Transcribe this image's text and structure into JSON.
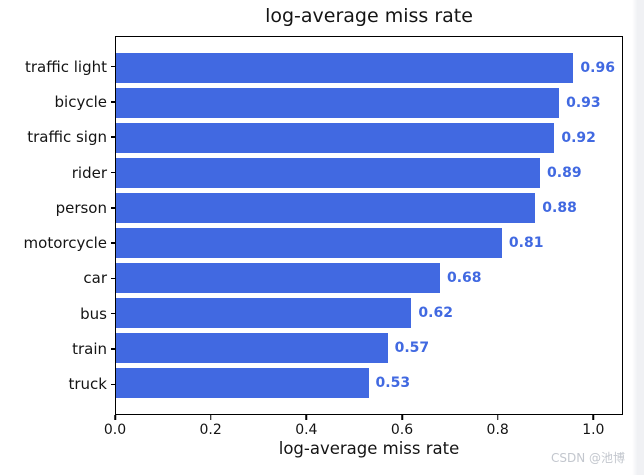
{
  "chart_data": {
    "type": "bar",
    "orientation": "horizontal",
    "title": "log-average miss rate",
    "xlabel": "log-average miss rate",
    "ylabel": "",
    "categories": [
      "traffic light",
      "bicycle",
      "traffic sign",
      "rider",
      "person",
      "motorcycle",
      "car",
      "bus",
      "train",
      "truck"
    ],
    "values": [
      0.96,
      0.93,
      0.92,
      0.89,
      0.88,
      0.81,
      0.68,
      0.62,
      0.57,
      0.53
    ],
    "value_labels": [
      "0.96",
      "0.93",
      "0.92",
      "0.89",
      "0.88",
      "0.81",
      "0.68",
      "0.62",
      "0.57",
      "0.53"
    ],
    "x_tick_labels": [
      "0.0",
      "0.2",
      "0.4",
      "0.6",
      "0.8",
      "1.0"
    ],
    "x_tick_values": [
      0.0,
      0.2,
      0.4,
      0.6,
      0.8,
      1.0
    ],
    "xlim": [
      0,
      1.062
    ],
    "grid": false,
    "legend": null,
    "bar_color": "#4169e1",
    "value_label_color": "#4169e1",
    "axis_color": "#000000",
    "text_color": "#141414"
  },
  "watermark": {
    "text": "CSDN @池博",
    "color": "#c3c7ce"
  }
}
